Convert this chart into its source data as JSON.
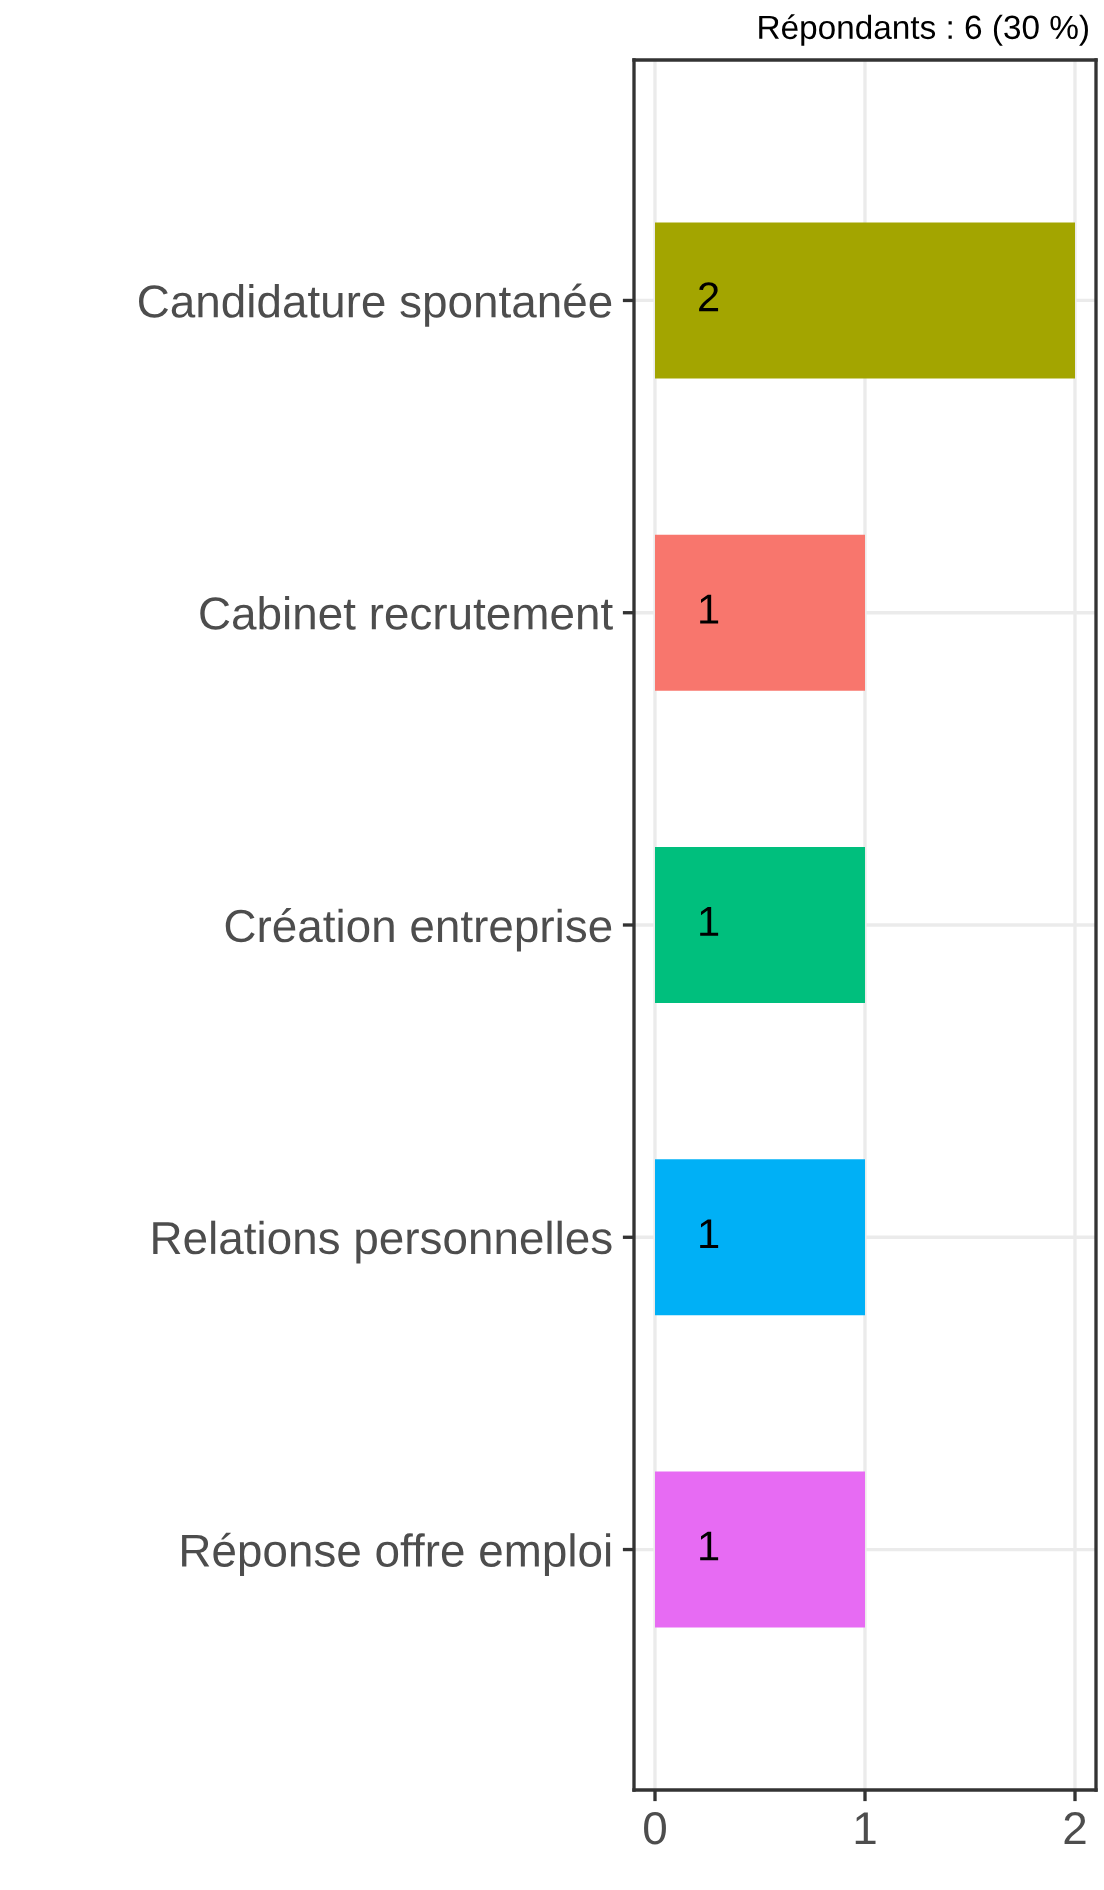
{
  "chart_data": {
    "type": "bar",
    "orientation": "horizontal",
    "title": "Répondants : 6 (30 %)",
    "categories": [
      "Candidature spontanée",
      "Cabinet recrutement",
      "Création entreprise",
      "Relations personnelles",
      "Réponse offre emploi"
    ],
    "values": [
      2,
      1,
      1,
      1,
      1
    ],
    "colors": [
      "#a3a500",
      "#f8766d",
      "#00bf7d",
      "#00b0f6",
      "#e76bf3"
    ],
    "xlim": [
      -0.1,
      2.1
    ],
    "xticks": [
      0,
      1,
      2
    ],
    "grid": true,
    "data_labels": true
  }
}
